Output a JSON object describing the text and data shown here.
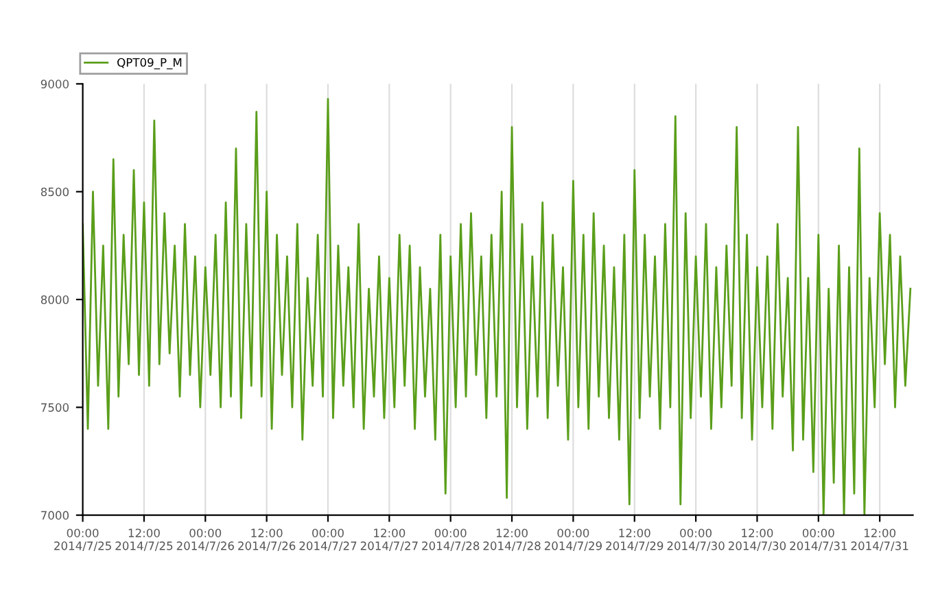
{
  "chart_data": {
    "type": "line",
    "x": [
      "2014-07-25T00:00",
      "2014-07-25T01:00",
      "2014-07-25T02:00",
      "2014-07-25T03:00",
      "2014-07-25T04:00",
      "2014-07-25T05:00",
      "2014-07-25T06:00",
      "2014-07-25T07:00",
      "2014-07-25T08:00",
      "2014-07-25T09:00",
      "2014-07-25T10:00",
      "2014-07-25T11:00",
      "2014-07-25T12:00",
      "2014-07-25T13:00",
      "2014-07-25T14:00",
      "2014-07-25T15:00",
      "2014-07-25T16:00",
      "2014-07-25T17:00",
      "2014-07-25T18:00",
      "2014-07-25T19:00",
      "2014-07-25T20:00",
      "2014-07-25T21:00",
      "2014-07-25T22:00",
      "2014-07-25T23:00",
      "2014-07-26T00:00",
      "2014-07-26T01:00",
      "2014-07-26T02:00",
      "2014-07-26T03:00",
      "2014-07-26T04:00",
      "2014-07-26T05:00",
      "2014-07-26T06:00",
      "2014-07-26T07:00",
      "2014-07-26T08:00",
      "2014-07-26T09:00",
      "2014-07-26T10:00",
      "2014-07-26T11:00",
      "2014-07-26T12:00",
      "2014-07-26T13:00",
      "2014-07-26T14:00",
      "2014-07-26T15:00",
      "2014-07-26T16:00",
      "2014-07-26T17:00",
      "2014-07-26T18:00",
      "2014-07-26T19:00",
      "2014-07-26T20:00",
      "2014-07-26T21:00",
      "2014-07-26T22:00",
      "2014-07-26T23:00",
      "2014-07-27T00:00",
      "2014-07-27T01:00",
      "2014-07-27T02:00",
      "2014-07-27T03:00",
      "2014-07-27T04:00",
      "2014-07-27T05:00",
      "2014-07-27T06:00",
      "2014-07-27T07:00",
      "2014-07-27T08:00",
      "2014-07-27T09:00",
      "2014-07-27T10:00",
      "2014-07-27T11:00",
      "2014-07-27T12:00",
      "2014-07-27T13:00",
      "2014-07-27T14:00",
      "2014-07-27T15:00",
      "2014-07-27T16:00",
      "2014-07-27T17:00",
      "2014-07-27T18:00",
      "2014-07-27T19:00",
      "2014-07-27T20:00",
      "2014-07-27T21:00",
      "2014-07-27T22:00",
      "2014-07-27T23:00",
      "2014-07-28T00:00",
      "2014-07-28T01:00",
      "2014-07-28T02:00",
      "2014-07-28T03:00",
      "2014-07-28T04:00",
      "2014-07-28T05:00",
      "2014-07-28T06:00",
      "2014-07-28T07:00",
      "2014-07-28T08:00",
      "2014-07-28T09:00",
      "2014-07-28T10:00",
      "2014-07-28T11:00",
      "2014-07-28T12:00",
      "2014-07-28T13:00",
      "2014-07-28T14:00",
      "2014-07-28T15:00",
      "2014-07-28T16:00",
      "2014-07-28T17:00",
      "2014-07-28T18:00",
      "2014-07-28T19:00",
      "2014-07-28T20:00",
      "2014-07-28T21:00",
      "2014-07-28T22:00",
      "2014-07-28T23:00",
      "2014-07-29T00:00",
      "2014-07-29T01:00",
      "2014-07-29T02:00",
      "2014-07-29T03:00",
      "2014-07-29T04:00",
      "2014-07-29T05:00",
      "2014-07-29T06:00",
      "2014-07-29T07:00",
      "2014-07-29T08:00",
      "2014-07-29T09:00",
      "2014-07-29T10:00",
      "2014-07-29T11:00",
      "2014-07-29T12:00",
      "2014-07-29T13:00",
      "2014-07-29T14:00",
      "2014-07-29T15:00",
      "2014-07-29T16:00",
      "2014-07-29T17:00",
      "2014-07-29T18:00",
      "2014-07-29T19:00",
      "2014-07-29T20:00",
      "2014-07-29T21:00",
      "2014-07-29T22:00",
      "2014-07-29T23:00",
      "2014-07-30T00:00",
      "2014-07-30T01:00",
      "2014-07-30T02:00",
      "2014-07-30T03:00",
      "2014-07-30T04:00",
      "2014-07-30T05:00",
      "2014-07-30T06:00",
      "2014-07-30T07:00",
      "2014-07-30T08:00",
      "2014-07-30T09:00",
      "2014-07-30T10:00",
      "2014-07-30T11:00",
      "2014-07-30T12:00",
      "2014-07-30T13:00",
      "2014-07-30T14:00",
      "2014-07-30T15:00",
      "2014-07-30T16:00",
      "2014-07-30T17:00",
      "2014-07-30T18:00",
      "2014-07-30T19:00",
      "2014-07-30T20:00",
      "2014-07-30T21:00",
      "2014-07-30T22:00",
      "2014-07-30T23:00",
      "2014-07-31T00:00",
      "2014-07-31T01:00",
      "2014-07-31T02:00",
      "2014-07-31T03:00",
      "2014-07-31T04:00",
      "2014-07-31T05:00",
      "2014-07-31T06:00",
      "2014-07-31T07:00",
      "2014-07-31T08:00",
      "2014-07-31T09:00",
      "2014-07-31T10:00",
      "2014-07-31T11:00",
      "2014-07-31T12:00",
      "2014-07-31T13:00",
      "2014-07-31T14:00",
      "2014-07-31T15:00",
      "2014-07-31T16:00",
      "2014-07-31T17:00",
      "2014-07-31T18:00"
    ],
    "series": [
      {
        "name": "QPT09_P_M",
        "color": "#5a9e1a",
        "values": [
          8350,
          7400,
          8500,
          7600,
          8250,
          7400,
          8650,
          7550,
          8300,
          7700,
          8600,
          7650,
          8450,
          7600,
          8830,
          7700,
          8400,
          7750,
          8250,
          7550,
          8350,
          7650,
          8200,
          7500,
          8150,
          7650,
          8300,
          7500,
          8450,
          7550,
          8700,
          7450,
          8350,
          7600,
          8870,
          7550,
          8500,
          7400,
          8300,
          7650,
          8200,
          7500,
          8350,
          7350,
          8100,
          7600,
          8300,
          7550,
          8930,
          7450,
          8250,
          7600,
          8150,
          7500,
          8350,
          7400,
          8050,
          7550,
          8200,
          7450,
          8100,
          7500,
          8300,
          7600,
          8250,
          7400,
          8150,
          7550,
          8050,
          7350,
          8300,
          7100,
          8200,
          7500,
          8350,
          7550,
          8400,
          7650,
          8200,
          7450,
          8300,
          7550,
          8500,
          7080,
          8800,
          7500,
          8350,
          7400,
          8200,
          7550,
          8450,
          7450,
          8300,
          7600,
          8150,
          7350,
          8550,
          7500,
          8300,
          7400,
          8400,
          7550,
          8250,
          7450,
          8150,
          7350,
          8300,
          7050,
          8600,
          7450,
          8300,
          7550,
          8200,
          7400,
          8350,
          7500,
          8850,
          7050,
          8400,
          7450,
          8200,
          7550,
          8350,
          7400,
          8150,
          7500,
          8250,
          7600,
          8800,
          7450,
          8300,
          7350,
          8150,
          7500,
          8200,
          7400,
          8350,
          7550,
          8100,
          7300,
          8800,
          7350,
          8100,
          7200,
          8300,
          7000,
          8050,
          7150,
          8250,
          7000,
          8150,
          7100,
          8700,
          7000,
          8100,
          7500,
          8400,
          7700,
          8300,
          7500,
          8200,
          7600,
          8050
        ]
      }
    ],
    "ylim": [
      7000,
      9000
    ],
    "yticks": [
      7000,
      7500,
      8000,
      8500,
      9000
    ],
    "xlim": [
      "2014-07-25T00:00",
      "2014-07-31T18:30"
    ],
    "xticks": [
      {
        "value": "2014-07-25T00:00",
        "label": "00:00\n2014/7/25"
      },
      {
        "value": "2014-07-25T12:00",
        "label": "12:00\n2014/7/25"
      },
      {
        "value": "2014-07-26T00:00",
        "label": "00:00\n2014/7/26"
      },
      {
        "value": "2014-07-26T12:00",
        "label": "12:00\n2014/7/26"
      },
      {
        "value": "2014-07-27T00:00",
        "label": "00:00\n2014/7/27"
      },
      {
        "value": "2014-07-27T12:00",
        "label": "12:00\n2014/7/27"
      },
      {
        "value": "2014-07-28T00:00",
        "label": "00:00\n2014/7/28"
      },
      {
        "value": "2014-07-28T12:00",
        "label": "12:00\n2014/7/28"
      },
      {
        "value": "2014-07-29T00:00",
        "label": "00:00\n2014/7/29"
      },
      {
        "value": "2014-07-29T12:00",
        "label": "12:00\n2014/7/29"
      },
      {
        "value": "2014-07-30T00:00",
        "label": "00:00\n2014/7/30"
      },
      {
        "value": "2014-07-30T12:00",
        "label": "12:00\n2014/7/30"
      },
      {
        "value": "2014-07-31T00:00",
        "label": "00:00\n2014/7/31"
      },
      {
        "value": "2014-07-31T12:00",
        "label": "12:00\n2014/7/31"
      }
    ],
    "grid": "x",
    "legend": "top left",
    "marker": "none",
    "line_style": "solid"
  }
}
